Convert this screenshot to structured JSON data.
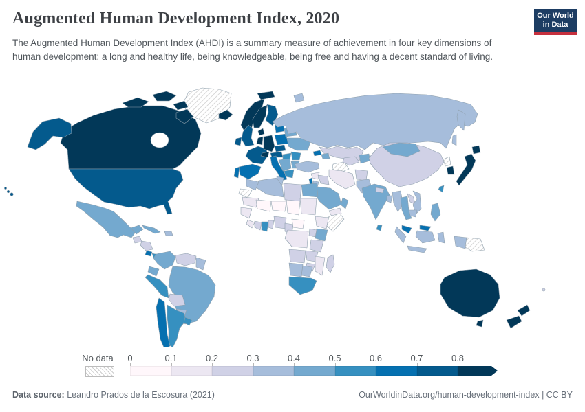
{
  "header": {
    "title": "Augmented Human Development Index, 2020",
    "subtitle": "The Augmented Human Development Index (AHDI) is a summary measure of achievement in four key dimensions of human development: a long and healthy life, being knowledgeable, being free and having a decent standard of living."
  },
  "logo": {
    "line1": "Our World",
    "line2": "in Data",
    "bg_color": "#1d3d63",
    "accent_color": "#c5303e"
  },
  "legend": {
    "no_data_label": "No data",
    "tick_labels": [
      "0",
      "0.1",
      "0.2",
      "0.3",
      "0.4",
      "0.5",
      "0.6",
      "0.7",
      "0.8"
    ]
  },
  "footer": {
    "source_label": "Data source:",
    "source_text": " Leandro Prados de la Escosura (2021)",
    "right_text": "OurWorldinData.org/human-development-index | CC BY"
  },
  "chart_data": {
    "type": "choropleth",
    "title": "Augmented Human Development Index, 2020",
    "unit": "index (0 to 1)",
    "legend_position": "bottom",
    "bins": [
      "0-0.1",
      "0.1-0.2",
      "0.2-0.3",
      "0.3-0.4",
      "0.4-0.5",
      "0.5-0.6",
      "0.6-0.7",
      "0.7-0.8",
      "0.8+"
    ],
    "palette": [
      "#fff7fb",
      "#ece7f2",
      "#d0d1e6",
      "#a6bddb",
      "#74a9cf",
      "#3690c0",
      "#0570b0",
      "#045a8d",
      "#023858"
    ],
    "no_data_style": "hatched",
    "regions": {
      "greenland": "no-data",
      "canada": "0.8+",
      "usa": "0.7-0.8",
      "mexico": "0.4-0.5",
      "guatemala": "0.2-0.3",
      "honduras-nicaragua": "0.2-0.3",
      "costa-rica": "0.6-0.7",
      "panama": "0.5-0.6",
      "cuba": "0.4-0.5",
      "hispaniola": "0.3-0.4",
      "colombia": "0.4-0.5",
      "venezuela": "0.2-0.3",
      "guyana-suriname": "0.3-0.4",
      "ecuador": "0.4-0.5",
      "peru": "0.5-0.6",
      "brazil": "0.4-0.5",
      "bolivia": "0.2-0.3",
      "paraguay": "0.3-0.4",
      "chile": "0.6-0.7",
      "argentina": "0.5-0.6",
      "uruguay": "0.5-0.6",
      "iceland": "0.8+",
      "svalbard": "0.8+",
      "norway": "0.8+",
      "sweden": "0.8+",
      "finland": "0.7-0.8",
      "denmark": "0.8+",
      "uk": "0.7-0.8",
      "ireland": "0.7-0.8",
      "france": "0.7-0.8",
      "spain": "0.6-0.7",
      "portugal": "0.6-0.7",
      "germany": "0.8+",
      "benelux": "0.8+",
      "switzerland": "0.8+",
      "austria": "0.7-0.8",
      "italy": "0.6-0.7",
      "poland": "0.6-0.7",
      "czechia-slovakia": "0.7-0.8",
      "hungary": "0.5-0.6",
      "romania": "0.5-0.6",
      "balkans": "0.4-0.5",
      "bulgaria": "0.4-0.5",
      "greece": "0.5-0.6",
      "baltics": "0.6-0.7",
      "belarus": "0.4-0.5",
      "ukraine": "0.4-0.5",
      "russia": "0.3-0.4",
      "kazakhstan": "0.2-0.3",
      "turkmenistan": "no-data",
      "uzbekistan": "0.2-0.3",
      "kyrgyzstan-tajikistan": "0.4-0.5",
      "georgia": "0.6-0.7",
      "azerbaijan": "0.4-0.5",
      "turkey": "0.3-0.4",
      "syria": "0.1-0.2",
      "iraq": "0.2-0.3",
      "iran": "0.1-0.2",
      "afghanistan": "0.2-0.3",
      "pakistan": "0.3-0.4",
      "saudi-arabia": "0.4-0.5",
      "yemen": "0.1-0.2",
      "oman": "0.4-0.5",
      "israel": "0.6-0.7",
      "jordan": "0.3-0.4",
      "egypt": "0.4-0.5",
      "libya": "0.2-0.3",
      "tunisia": "0.3-0.4",
      "algeria": "0.3-0.4",
      "morocco": "0.3-0.4",
      "western-sahara": "no-data",
      "mauritania": "0.1-0.2",
      "mali": "0-0.1",
      "niger": "0-0.1",
      "chad": "0-0.1",
      "sudan": "0.1-0.2",
      "senegal-guinea": "0.1-0.2",
      "sierra-leone-liberia": "0.1-0.2",
      "ivory-coast": "0.2-0.3",
      "ghana": "0.5-0.6",
      "togo-benin": "0.2-0.3",
      "nigeria": "0.2-0.3",
      "cameroon": "0.2-0.3",
      "central-african-republic": "0-0.1",
      "ethiopia": "0.1-0.2",
      "somalia": "no-data",
      "kenya": "0.4-0.5",
      "uganda": "0.2-0.3",
      "drc": "0.1-0.2",
      "tanzania": "0.2-0.3",
      "angola": "0.2-0.3",
      "zambia": "0.2-0.3",
      "mozambique": "0.1-0.2",
      "zimbabwe": "0.2-0.3",
      "namibia": "0.3-0.4",
      "botswana": "0.3-0.4",
      "south-africa": "0.5-0.6",
      "madagascar": "0.2-0.3",
      "india": "0.4-0.5",
      "nepal": "0.2-0.3",
      "bangladesh": "0.3-0.4",
      "sri-lanka": "0.5-0.6",
      "china": "0.2-0.3",
      "mongolia": "0.4-0.5",
      "north-korea": "no-data",
      "south-korea": "0.8+",
      "japan": "0.8+",
      "taiwan": "0.5-0.6",
      "myanmar": "0.3-0.4",
      "thailand": "0.4-0.5",
      "laos": "0.2-0.3",
      "vietnam": "0.3-0.4",
      "cambodia": "0.3-0.4",
      "malaysia": "0.6-0.7",
      "indonesia": "0.3-0.4",
      "papua-new-guinea": "no-data",
      "philippines": "0.4-0.5",
      "australia": "0.8+",
      "new-zealand": "0.8+",
      "fiji": "0.2-0.3"
    }
  }
}
